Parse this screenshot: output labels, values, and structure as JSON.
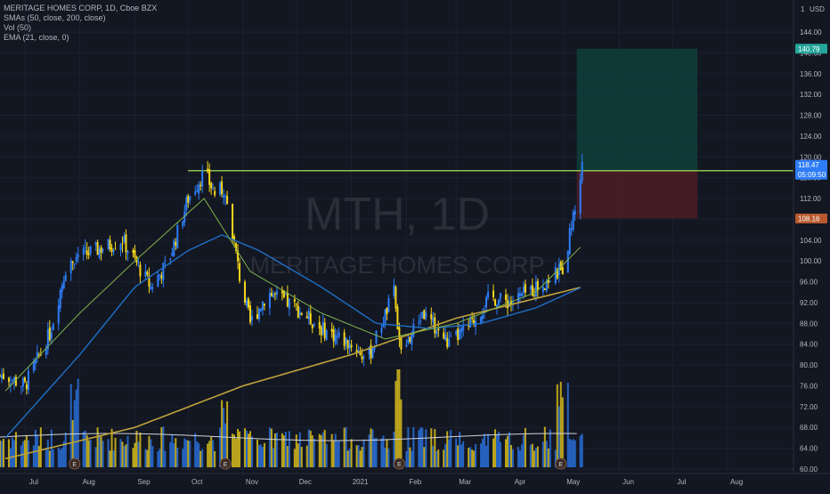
{
  "header": {
    "symbol_line": "MERITAGE HOMES CORP, 1D, Cboe BZX",
    "indicator_sma": "SMAs (50, close, 200, close)",
    "indicator_vol": "Vol (50)",
    "indicator_ema": "EMA (21, close, 0)"
  },
  "watermark": {
    "ticker": "MTH, 1D",
    "company": "MERITAGE HOMES CORP"
  },
  "price_axis": {
    "currency": "USD",
    "ticks": [
      "144.00",
      "140.00",
      "136.00",
      "132.00",
      "128.00",
      "124.00",
      "120.00",
      "116.00",
      "112.00",
      "108.00",
      "104.00",
      "100.00",
      "96.00",
      "92.00",
      "88.00",
      "84.00",
      "80.00",
      "76.00",
      "72.00",
      "68.00",
      "64.00",
      "60.00"
    ]
  },
  "time_axis": {
    "labels": [
      "Jul",
      "Aug",
      "Sep",
      "Oct",
      "Nov",
      "Dec",
      "2021",
      "Feb",
      "Mar",
      "Apr",
      "May",
      "Jun",
      "Jul",
      "Aug"
    ]
  },
  "price_tags": {
    "target": "140.79",
    "last_price": "118.47",
    "countdown": "05:09:50",
    "level_1": "117.35",
    "level_2": "117.28",
    "stop": "108.16"
  },
  "earnings_markers": [
    "E",
    "E",
    "E",
    "E"
  ],
  "colors": {
    "background": "#131722",
    "up_candle": "#2e7df7",
    "down_candle": "#f5d61b",
    "sma50": "#1f6fc6",
    "sma200": "#bfa23a",
    "ema21": "#7fb24a",
    "volume_ma": "#d1d4dc",
    "resistance": "#8bc34a",
    "target_zone": "#0e3d3a",
    "stop_zone": "#4a1d25",
    "last_price_tag": "#2e7df7",
    "target_tag": "#26a69a",
    "stop_tag": "#b8592e"
  },
  "chart_data": {
    "type": "candlestick",
    "title": "MERITAGE HOMES CORP, 1D, Cboe BZX",
    "y_range": [
      60,
      144
    ],
    "resistance_level": 117.35,
    "target_zone": [
      117.35,
      140.79
    ],
    "stop_zone": [
      108.16,
      117.35
    ],
    "close_path": [
      [
        "2020-06-20",
        78
      ],
      [
        "2020-07-01",
        76
      ],
      [
        "2020-07-15",
        86
      ],
      [
        "2020-07-25",
        100
      ],
      [
        "2020-08-10",
        102
      ],
      [
        "2020-08-25",
        104
      ],
      [
        "2020-09-10",
        95
      ],
      [
        "2020-09-20",
        100
      ],
      [
        "2020-10-01",
        112
      ],
      [
        "2020-10-10",
        117
      ],
      [
        "2020-10-16",
        113
      ],
      [
        "2020-10-22",
        114
      ],
      [
        "2020-10-30",
        97
      ],
      [
        "2020-11-05",
        88
      ],
      [
        "2020-11-15",
        94
      ],
      [
        "2020-12-01",
        91
      ],
      [
        "2020-12-15",
        87
      ],
      [
        "2021-01-01",
        84
      ],
      [
        "2021-01-10",
        81
      ],
      [
        "2021-01-25",
        94
      ],
      [
        "2021-01-29",
        82
      ],
      [
        "2021-02-10",
        90
      ],
      [
        "2021-02-25",
        84
      ],
      [
        "2021-03-10",
        88
      ],
      [
        "2021-03-20",
        93
      ],
      [
        "2021-04-01",
        92
      ],
      [
        "2021-04-15",
        95
      ],
      [
        "2021-04-25",
        97
      ],
      [
        "2021-05-01",
        99
      ],
      [
        "2021-05-05",
        107
      ],
      [
        "2021-05-08",
        112
      ],
      [
        "2021-05-11",
        118.47
      ]
    ],
    "sma50_path": [
      [
        "2020-06-20",
        66
      ],
      [
        "2020-08-01",
        82
      ],
      [
        "2020-09-01",
        95
      ],
      [
        "2020-10-01",
        102
      ],
      [
        "2020-10-20",
        105
      ],
      [
        "2020-11-10",
        102
      ],
      [
        "2020-12-15",
        95
      ],
      [
        "2021-01-15",
        88
      ],
      [
        "2021-02-15",
        87
      ],
      [
        "2021-03-15",
        88
      ],
      [
        "2021-04-15",
        91
      ],
      [
        "2021-05-11",
        95
      ]
    ],
    "sma200_path": [
      [
        "2020-06-20",
        62
      ],
      [
        "2020-09-01",
        68
      ],
      [
        "2020-11-01",
        76
      ],
      [
        "2021-01-01",
        82
      ],
      [
        "2021-03-01",
        89
      ],
      [
        "2021-05-11",
        95
      ]
    ],
    "ema21_path": [
      [
        "2020-06-20",
        75
      ],
      [
        "2020-08-01",
        90
      ],
      [
        "2020-09-01",
        100
      ],
      [
        "2020-10-10",
        112
      ],
      [
        "2020-11-05",
        98
      ],
      [
        "2020-12-15",
        90
      ],
      [
        "2021-01-20",
        85
      ],
      [
        "2021-03-01",
        88
      ],
      [
        "2021-04-15",
        94
      ],
      [
        "2021-05-11",
        103
      ]
    ],
    "earnings_dates": [
      "2020-07-29",
      "2020-10-22",
      "2021-01-28",
      "2021-04-29"
    ]
  }
}
